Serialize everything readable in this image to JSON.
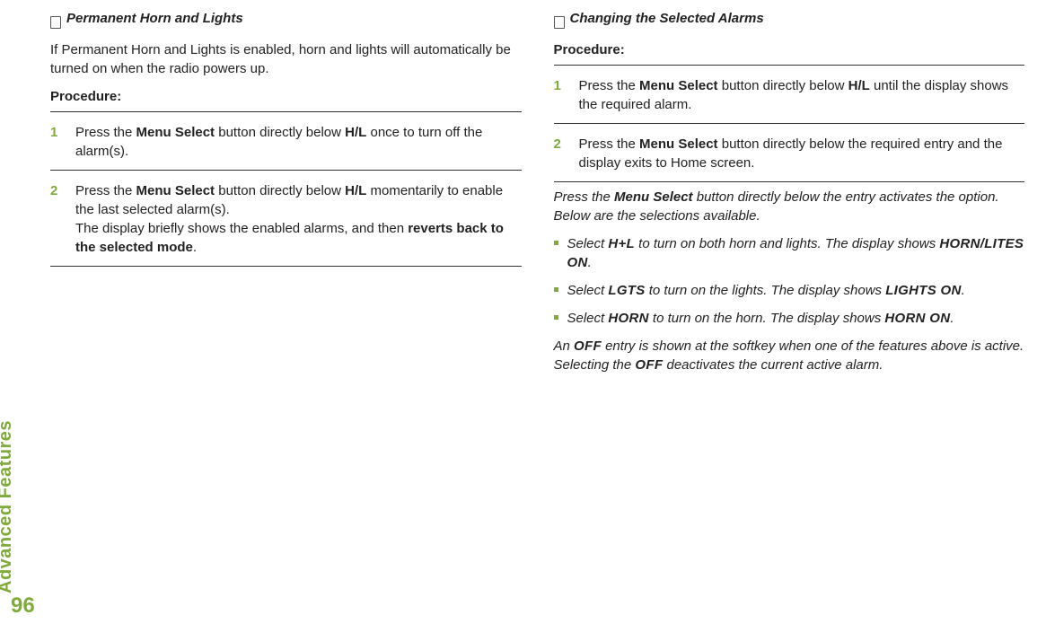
{
  "theme": {
    "accent": "#7eab3a",
    "text": "#222222",
    "background": "#ffffff",
    "font_family": "Arial",
    "base_font_size": 15
  },
  "sidebar": {
    "label": "Advanced Features"
  },
  "page_number": "96",
  "left": {
    "title": "Permanent Horn and Lights",
    "intro": "If Permanent Horn and Lights is enabled, horn and lights will automatically be turned on when the radio powers up.",
    "procedure_label": "Procedure:",
    "steps": [
      {
        "pre": "Press the ",
        "b1": "Menu Select",
        "mid": " button directly below ",
        "b2": "H/L",
        "post": " once to turn off the alarm(s)."
      },
      {
        "pre": "Press the ",
        "b1": "Menu Select",
        "mid": " button directly below ",
        "b2": "H/L",
        "post1": " momentarily to enable the last selected alarm(s).",
        "line2_pre": "The display briefly shows the enabled alarms, and then ",
        "line2_b": "reverts back to the selected mode",
        "line2_post": "."
      }
    ]
  },
  "right": {
    "title": "Changing the Selected Alarms",
    "procedure_label": "Procedure:",
    "steps": [
      {
        "pre": "Press the ",
        "b1": "Menu Select",
        "mid": " button directly below ",
        "b2": "H/L",
        "post": " until the display shows the required alarm."
      },
      {
        "pre": "Press the ",
        "b1": "Menu Select",
        "post": " button directly below the required entry and the display exits to Home screen."
      }
    ],
    "note_pre": "Press the ",
    "note_b": "Menu Select",
    "note_post": " button directly below the entry activates the option. Below are the selections available.",
    "bullets": [
      {
        "pre": "Select ",
        "k1": "H+L",
        "mid": " to turn on both horn and lights. The display shows ",
        "k2": "HORN/LITES ON",
        "post": "."
      },
      {
        "pre": "Select ",
        "k1": "LGTS",
        "mid": " to turn on the lights. The display shows ",
        "k2": "LIGHTS ON",
        "post": "."
      },
      {
        "pre": "Select ",
        "k1": "HORN",
        "mid": " to turn on the horn. The display shows ",
        "k2": "HORN ON",
        "post": "."
      }
    ],
    "tail_pre": "An ",
    "tail_k1": "OFF",
    "tail_mid": " entry is shown at the softkey when one of the features above is active. Selecting the ",
    "tail_k2": "OFF",
    "tail_post": " deactivates the current active alarm."
  }
}
